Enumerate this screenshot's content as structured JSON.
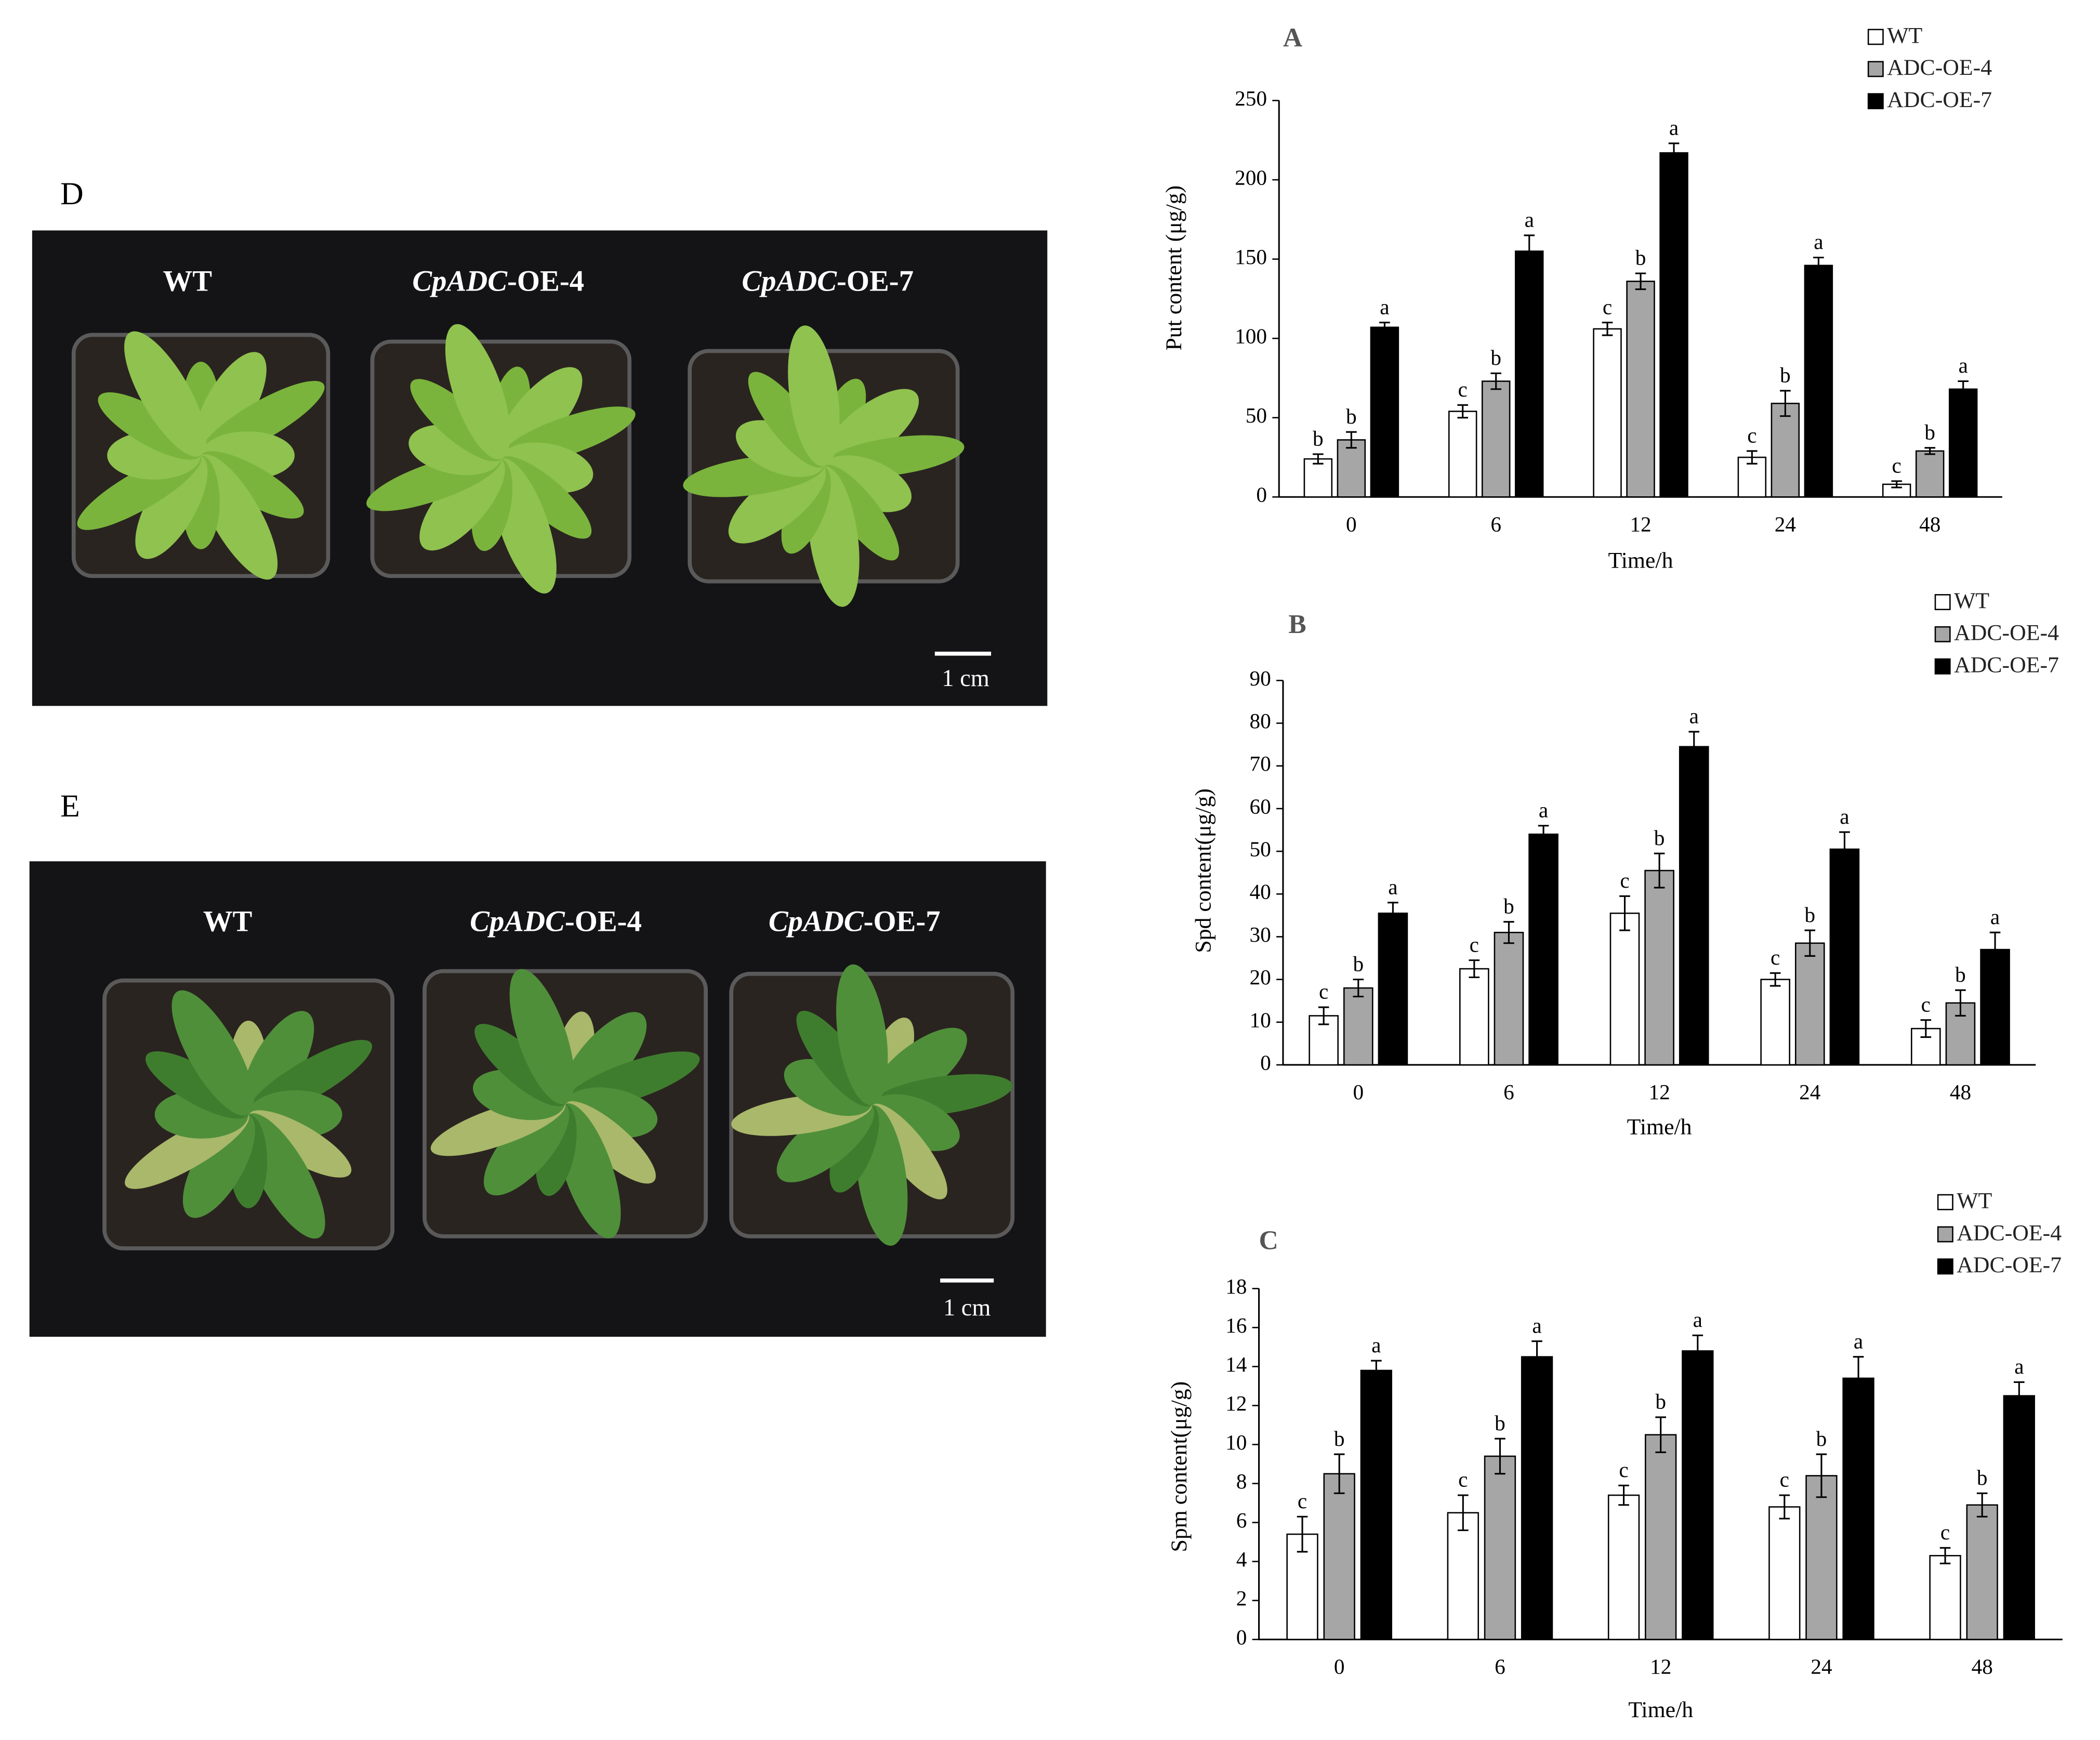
{
  "panels": [
    {
      "label": "D",
      "titles": [
        {
          "rest": "WT"
        },
        {
          "italic": "CpADC",
          "rest": "-OE-4"
        },
        {
          "italic": "CpADC",
          "rest": "-OE-7"
        }
      ],
      "scale": "1 cm"
    },
    {
      "label": "E",
      "titles": [
        {
          "rest": "WT"
        },
        {
          "italic": "CpADC",
          "rest": "-OE-4"
        },
        {
          "italic": "CpADC",
          "rest": "-OE-7"
        }
      ],
      "scale": "1 cm"
    }
  ],
  "chart_data": [
    {
      "type": "bar",
      "title": "A",
      "y_label": "Put content (μg/g)",
      "x_label": "Time/h",
      "categories": [
        "0",
        "6",
        "12",
        "24",
        "48"
      ],
      "ylim": [
        0,
        250
      ],
      "yticks": [
        0,
        50,
        100,
        150,
        200,
        250
      ],
      "series": [
        {
          "name": "WT",
          "color": "#ffffff",
          "values": [
            24,
            54,
            106,
            25,
            8
          ],
          "errors": [
            3,
            4,
            4,
            4,
            2
          ],
          "letters": [
            "b",
            "c",
            "c",
            "c",
            "c"
          ]
        },
        {
          "name": "ADC-OE-4",
          "color": "#a6a6a6",
          "values": [
            36,
            73,
            136,
            59,
            29
          ],
          "errors": [
            5,
            5,
            5,
            8,
            2
          ],
          "letters": [
            "b",
            "b",
            "b",
            "b",
            "b"
          ]
        },
        {
          "name": "ADC-OE-7",
          "color": "#000000",
          "values": [
            107,
            155,
            217,
            146,
            68
          ],
          "errors": [
            3,
            10,
            6,
            5,
            5
          ],
          "letters": [
            "a",
            "a",
            "a",
            "a",
            "a"
          ]
        }
      ]
    },
    {
      "type": "bar",
      "title": "B",
      "y_label": "Spd content(μg/g)",
      "x_label": "Time/h",
      "categories": [
        "0",
        "6",
        "12",
        "24",
        "48"
      ],
      "ylim": [
        0,
        90
      ],
      "yticks": [
        0,
        10,
        20,
        30,
        40,
        50,
        60,
        70,
        80,
        90
      ],
      "series": [
        {
          "name": "WT",
          "color": "#ffffff",
          "values": [
            11.5,
            22.5,
            35.5,
            20,
            8.5
          ],
          "errors": [
            2,
            2,
            4,
            1.5,
            2
          ],
          "letters": [
            "c",
            "c",
            "c",
            "c",
            "c"
          ]
        },
        {
          "name": "ADC-OE-4",
          "color": "#a6a6a6",
          "values": [
            18,
            31,
            45.5,
            28.5,
            14.5
          ],
          "errors": [
            2,
            2.5,
            4,
            3,
            3
          ],
          "letters": [
            "b",
            "b",
            "b",
            "b",
            "b"
          ]
        },
        {
          "name": "ADC-OE-7",
          "color": "#000000",
          "values": [
            35.5,
            54,
            74.5,
            50.5,
            27
          ],
          "errors": [
            2.5,
            2,
            3.5,
            4,
            4
          ],
          "letters": [
            "a",
            "a",
            "a",
            "a",
            "a"
          ]
        }
      ]
    },
    {
      "type": "bar",
      "title": "C",
      "y_label": "Spm content(μg/g)",
      "x_label": "Time/h",
      "categories": [
        "0",
        "6",
        "12",
        "24",
        "48"
      ],
      "ylim": [
        0,
        18
      ],
      "yticks": [
        0,
        2,
        4,
        6,
        8,
        10,
        12,
        14,
        16,
        18
      ],
      "series": [
        {
          "name": "WT",
          "color": "#ffffff",
          "values": [
            5.4,
            6.5,
            7.4,
            6.8,
            4.3
          ],
          "errors": [
            0.9,
            0.9,
            0.5,
            0.6,
            0.4
          ],
          "letters": [
            "c",
            "c",
            "c",
            "c",
            "c"
          ]
        },
        {
          "name": "ADC-OE-4",
          "color": "#a6a6a6",
          "values": [
            8.5,
            9.4,
            10.5,
            8.4,
            6.9
          ],
          "errors": [
            1,
            0.9,
            0.9,
            1.1,
            0.6
          ],
          "letters": [
            "b",
            "b",
            "b",
            "b",
            "b"
          ]
        },
        {
          "name": "ADC-OE-7",
          "color": "#000000",
          "values": [
            13.8,
            14.5,
            14.8,
            13.4,
            12.5
          ],
          "errors": [
            0.5,
            0.8,
            0.8,
            1.1,
            0.7
          ],
          "letters": [
            "a",
            "a",
            "a",
            "a",
            "a"
          ]
        }
      ]
    }
  ]
}
